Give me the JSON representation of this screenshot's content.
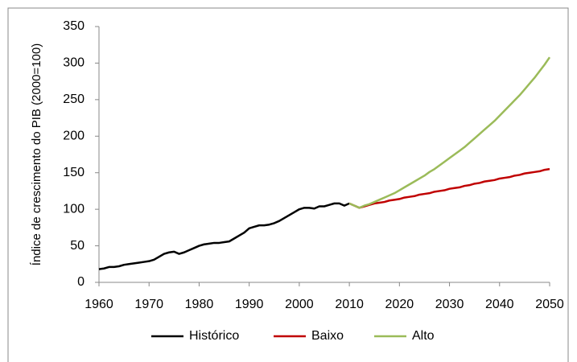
{
  "chart_data": {
    "type": "line",
    "ylabel": "Índice de crescimento do PIB (2000=100)",
    "x": [
      1960,
      1961,
      1962,
      1963,
      1964,
      1965,
      1966,
      1967,
      1968,
      1969,
      1970,
      1971,
      1972,
      1973,
      1974,
      1975,
      1976,
      1977,
      1978,
      1979,
      1980,
      1981,
      1982,
      1983,
      1984,
      1985,
      1986,
      1987,
      1988,
      1989,
      1990,
      1991,
      1992,
      1993,
      1994,
      1995,
      1996,
      1997,
      1998,
      1999,
      2000,
      2001,
      2002,
      2003,
      2004,
      2005,
      2006,
      2007,
      2008,
      2009,
      2010,
      2011,
      2012,
      2013,
      2014,
      2015,
      2016,
      2017,
      2018,
      2019,
      2020,
      2021,
      2022,
      2023,
      2024,
      2025,
      2026,
      2027,
      2028,
      2029,
      2030,
      2031,
      2032,
      2033,
      2034,
      2035,
      2036,
      2037,
      2038,
      2039,
      2040,
      2041,
      2042,
      2043,
      2044,
      2045,
      2046,
      2047,
      2048,
      2049,
      2050
    ],
    "series": [
      {
        "name": "Histórico",
        "color": "#000000",
        "values": [
          18,
          19,
          21,
          21,
          22,
          24,
          25,
          26,
          27,
          28,
          29,
          31,
          35,
          39,
          41,
          42,
          39,
          41,
          44,
          47,
          50,
          52,
          53,
          54,
          54,
          55,
          56,
          60,
          64,
          68,
          74,
          76,
          78,
          78,
          79,
          81,
          84,
          88,
          92,
          96,
          100,
          102,
          102,
          101,
          104,
          104,
          106,
          108,
          108,
          105,
          108,
          null,
          null,
          null,
          null,
          null,
          null,
          null,
          null,
          null,
          null,
          null,
          null,
          null,
          null,
          null,
          null,
          null,
          null,
          null,
          null,
          null,
          null,
          null,
          null,
          null,
          null,
          null,
          null,
          null,
          null,
          null,
          null,
          null,
          null,
          null,
          null,
          null,
          null,
          null,
          null
        ]
      },
      {
        "name": "Baixo",
        "color": "#c00000",
        "values": [
          null,
          null,
          null,
          null,
          null,
          null,
          null,
          null,
          null,
          null,
          null,
          null,
          null,
          null,
          null,
          null,
          null,
          null,
          null,
          null,
          null,
          null,
          null,
          null,
          null,
          null,
          null,
          null,
          null,
          null,
          null,
          null,
          null,
          null,
          null,
          null,
          null,
          null,
          null,
          null,
          null,
          null,
          null,
          null,
          null,
          null,
          null,
          null,
          null,
          null,
          108,
          105,
          102,
          104,
          106,
          108,
          109,
          110,
          112,
          113,
          114,
          116,
          117,
          118,
          120,
          121,
          122,
          124,
          125,
          126,
          128,
          129,
          130,
          132,
          133,
          135,
          136,
          138,
          139,
          140,
          142,
          143,
          144,
          146,
          147,
          149,
          150,
          151,
          152,
          154,
          155
        ]
      },
      {
        "name": "Alto",
        "color": "#9bbb59",
        "values": [
          null,
          null,
          null,
          null,
          null,
          null,
          null,
          null,
          null,
          null,
          null,
          null,
          null,
          null,
          null,
          null,
          null,
          null,
          null,
          null,
          null,
          null,
          null,
          null,
          null,
          null,
          null,
          null,
          null,
          null,
          null,
          null,
          null,
          null,
          null,
          null,
          null,
          null,
          null,
          null,
          null,
          null,
          null,
          null,
          null,
          null,
          null,
          null,
          null,
          null,
          108,
          105,
          102,
          105,
          107,
          110,
          113,
          116,
          119,
          122,
          126,
          130,
          134,
          138,
          142,
          146,
          151,
          155,
          160,
          165,
          170,
          175,
          180,
          185,
          191,
          197,
          203,
          209,
          215,
          221,
          228,
          235,
          242,
          249,
          256,
          264,
          272,
          280,
          289,
          298,
          308
        ]
      }
    ],
    "xlim": [
      1960,
      2050
    ],
    "xticks": [
      1960,
      1970,
      1980,
      1990,
      2000,
      2010,
      2020,
      2030,
      2040,
      2050
    ],
    "ylim": [
      0,
      350
    ],
    "yticks": [
      0,
      50,
      100,
      150,
      200,
      250,
      300,
      350
    ],
    "legend": "bottom"
  }
}
